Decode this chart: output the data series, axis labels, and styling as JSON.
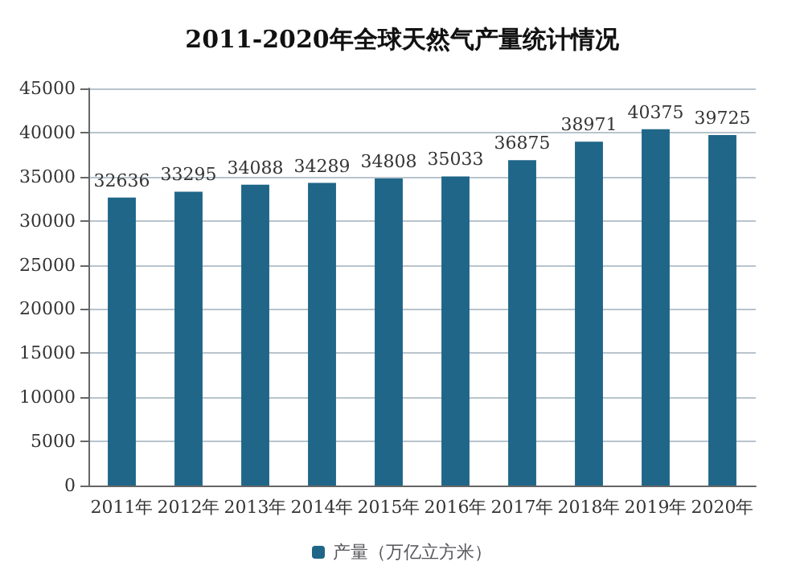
{
  "chart_data": {
    "type": "bar",
    "title": "2011-2020年全球天然气产量统计情况",
    "categories": [
      "2011年",
      "2012年",
      "2013年",
      "2014年",
      "2015年",
      "2016年",
      "2017年",
      "2018年",
      "2019年",
      "2020年"
    ],
    "series": [
      {
        "name": "产量（万亿立方米）",
        "color": "#1f6688",
        "values": [
          32636,
          33295,
          34088,
          34289,
          34808,
          35033,
          36875,
          38971,
          40375,
          39725
        ]
      }
    ],
    "ylim": [
      0,
      45000
    ],
    "yticks": [
      0,
      5000,
      10000,
      15000,
      20000,
      25000,
      30000,
      35000,
      40000,
      45000
    ],
    "data_labels": true,
    "grid": "y",
    "legend": "bottom"
  }
}
